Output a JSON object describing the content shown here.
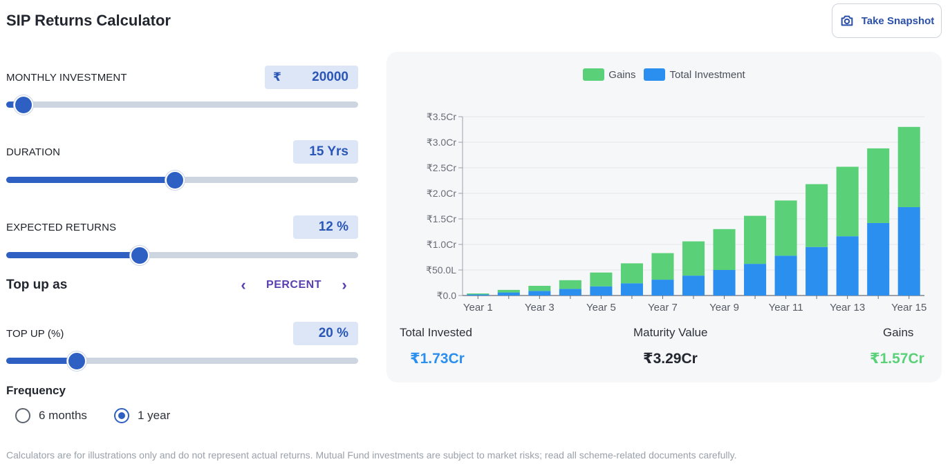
{
  "header": {
    "title": "SIP Returns Calculator",
    "snapshot_label": "Take Snapshot",
    "snapshot_icon": "camera-icon"
  },
  "monthly_investment": {
    "label": "MONTHLY INVESTMENT",
    "currency": "₹",
    "value": "20000",
    "slider_fraction": 0.05
  },
  "duration": {
    "label": "DURATION",
    "value": "15 Yrs",
    "slider_fraction": 0.48
  },
  "expected_returns": {
    "label": "EXPECTED RETURNS",
    "value": "12 %",
    "slider_fraction": 0.38
  },
  "topup_as": {
    "label": "Top up as",
    "mode": "PERCENT",
    "prev_icon": "chevron-left-icon",
    "next_icon": "chevron-right-icon"
  },
  "topup": {
    "label": "TOP UP (%)",
    "value": "20 %",
    "slider_fraction": 0.2
  },
  "frequency": {
    "label": "Frequency",
    "options": [
      {
        "label": "6 months",
        "checked": false
      },
      {
        "label": "1 year",
        "checked": true
      }
    ]
  },
  "summary": {
    "invested_label": "Total Invested",
    "invested_value": "₹1.73Cr",
    "maturity_label": "Maturity Value",
    "maturity_value": "₹3.29Cr",
    "gains_label": "Gains",
    "gains_value": "₹1.57Cr"
  },
  "disclaimer": "Calculators are for illustrations only and do not represent actual returns. Mutual Fund investments are subject to market risks; read all scheme-related documents carefully.",
  "colors": {
    "gains": "#5ad178",
    "investment": "#2b8ff0",
    "accent": "#2e5fc3"
  },
  "chart_data": {
    "type": "bar",
    "stacked": true,
    "categories": [
      "Year 1",
      "Year 2",
      "Year 3",
      "Year 4",
      "Year 5",
      "Year 6",
      "Year 7",
      "Year 8",
      "Year 9",
      "Year 10",
      "Year 11",
      "Year 12",
      "Year 13",
      "Year 14",
      "Year 15"
    ],
    "x_tick_labels": [
      "Year 1",
      "Year 3",
      "Year 5",
      "Year 7",
      "Year 9",
      "Year 11",
      "Year 13",
      "Year 15"
    ],
    "y_tick_labels": [
      "₹0.0",
      "₹50.0L",
      "₹1.0Cr",
      "₹1.5Cr",
      "₹2.0Cr",
      "₹2.5Cr",
      "₹3.0Cr",
      "₹3.5Cr"
    ],
    "y_unit": "Cr",
    "ylim": [
      0,
      3.5
    ],
    "grid": true,
    "legend_position": "top-center",
    "series": [
      {
        "name": "Gains",
        "values": [
          0.02,
          0.05,
          0.1,
          0.17,
          0.27,
          0.39,
          0.52,
          0.67,
          0.8,
          0.94,
          1.08,
          1.23,
          1.36,
          1.46,
          1.57
        ]
      },
      {
        "name": "Total Investment",
        "values": [
          0.02,
          0.06,
          0.09,
          0.13,
          0.18,
          0.24,
          0.31,
          0.39,
          0.5,
          0.62,
          0.78,
          0.95,
          1.16,
          1.42,
          1.73
        ]
      }
    ]
  }
}
